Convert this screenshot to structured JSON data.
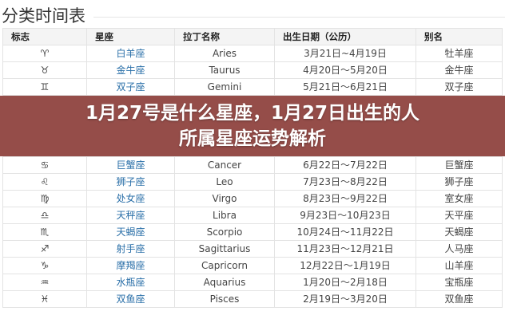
{
  "section_title": "分类时间表",
  "columns": [
    "标志",
    "星座",
    "拉丁名称",
    "出生日期（公历）",
    "别名"
  ],
  "rows": [
    {
      "symbol": "♈",
      "name": "白羊座",
      "latin": "Aries",
      "dates": "3月21日~4月19日",
      "alias": "牡羊座"
    },
    {
      "symbol": "♉",
      "name": "金牛座",
      "latin": "Taurus",
      "dates": "4月20日～5月20日",
      "alias": "金牛座"
    },
    {
      "symbol": "♊",
      "name": "双子座",
      "latin": "Gemini",
      "dates": "5月21日～6月21日",
      "alias": "双子座"
    },
    {
      "symbol": "♋",
      "name": "巨蟹座",
      "latin": "Cancer",
      "dates": "6月22日～7月22日",
      "alias": "巨蟹座"
    },
    {
      "symbol": "♌",
      "name": "狮子座",
      "latin": "Leo",
      "dates": "7月23日～8月22日",
      "alias": "狮子座"
    },
    {
      "symbol": "♍",
      "name": "处女座",
      "latin": "Virgo",
      "dates": "8月23日～9月22日",
      "alias": "室女座"
    },
    {
      "symbol": "♎",
      "name": "天秤座",
      "latin": "Libra",
      "dates": "9月23日～10月23日",
      "alias": "天平座"
    },
    {
      "symbol": "♏",
      "name": "天蝎座",
      "latin": "Scorpio",
      "dates": "10月24日～11月22日",
      "alias": "天蝎座"
    },
    {
      "symbol": "♐",
      "name": "射手座",
      "latin": "Sagittarius",
      "dates": "11月23日～12月21日",
      "alias": "人马座"
    },
    {
      "symbol": "♑",
      "name": "摩羯座",
      "latin": "Capricorn",
      "dates": "12月22日～1月19日",
      "alias": "山羊座"
    },
    {
      "symbol": "♒",
      "name": "水瓶座",
      "latin": "Aquarius",
      "dates": "1月20日～2月18日",
      "alias": "宝瓶座"
    },
    {
      "symbol": "♓",
      "name": "双鱼座",
      "latin": "Pisces",
      "dates": "2月19日～3月20日",
      "alias": "双鱼座"
    }
  ],
  "banner": {
    "line1": "1月27号是什么星座，1月27日出生的人",
    "line2": "所属星座运势解析"
  }
}
